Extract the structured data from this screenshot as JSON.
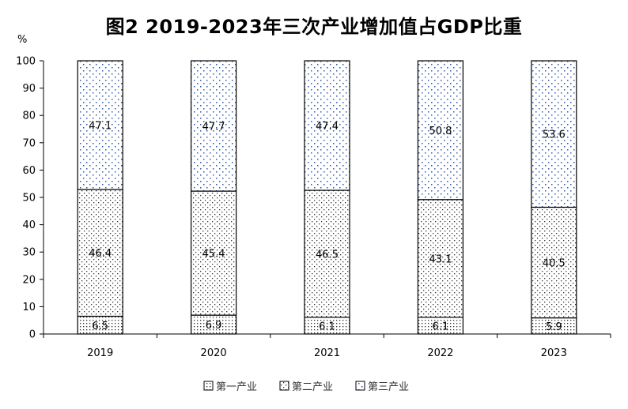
{
  "chart_data": {
    "type": "bar",
    "stacked": true,
    "title": "图2   2019-2023年三次产业增加值占GDP比重",
    "ylabel": "%",
    "xlabel": "",
    "ylim": [
      0,
      100
    ],
    "yticks": [
      0,
      10,
      20,
      30,
      40,
      50,
      60,
      70,
      80,
      90,
      100
    ],
    "categories": [
      "2019",
      "2020",
      "2021",
      "2022",
      "2023"
    ],
    "series": [
      {
        "name": "第一产业",
        "values": [
          6.5,
          6.9,
          6.1,
          6.1,
          5.9
        ],
        "pattern": "dense-dots"
      },
      {
        "name": "第二产业",
        "values": [
          46.4,
          45.4,
          46.5,
          43.1,
          40.5
        ],
        "pattern": "medium-dots"
      },
      {
        "name": "第三产业",
        "values": [
          47.1,
          47.7,
          47.4,
          50.8,
          53.6
        ],
        "pattern": "sparse-blue-dots"
      }
    ],
    "data_labels": [
      [
        "6.5",
        "6.9",
        "6.1",
        "6.1",
        "5.9"
      ],
      [
        "46.4",
        "45.4",
        "46.5",
        "43.1",
        "40.5"
      ],
      [
        "47.1",
        "47.7",
        "47.4",
        "50.8",
        "53.6"
      ]
    ],
    "legend_position": "bottom",
    "grid": false,
    "colors": {
      "dot_dark": "#333333",
      "dot_blue": "#2f57a6",
      "outline": "#000000"
    }
  }
}
